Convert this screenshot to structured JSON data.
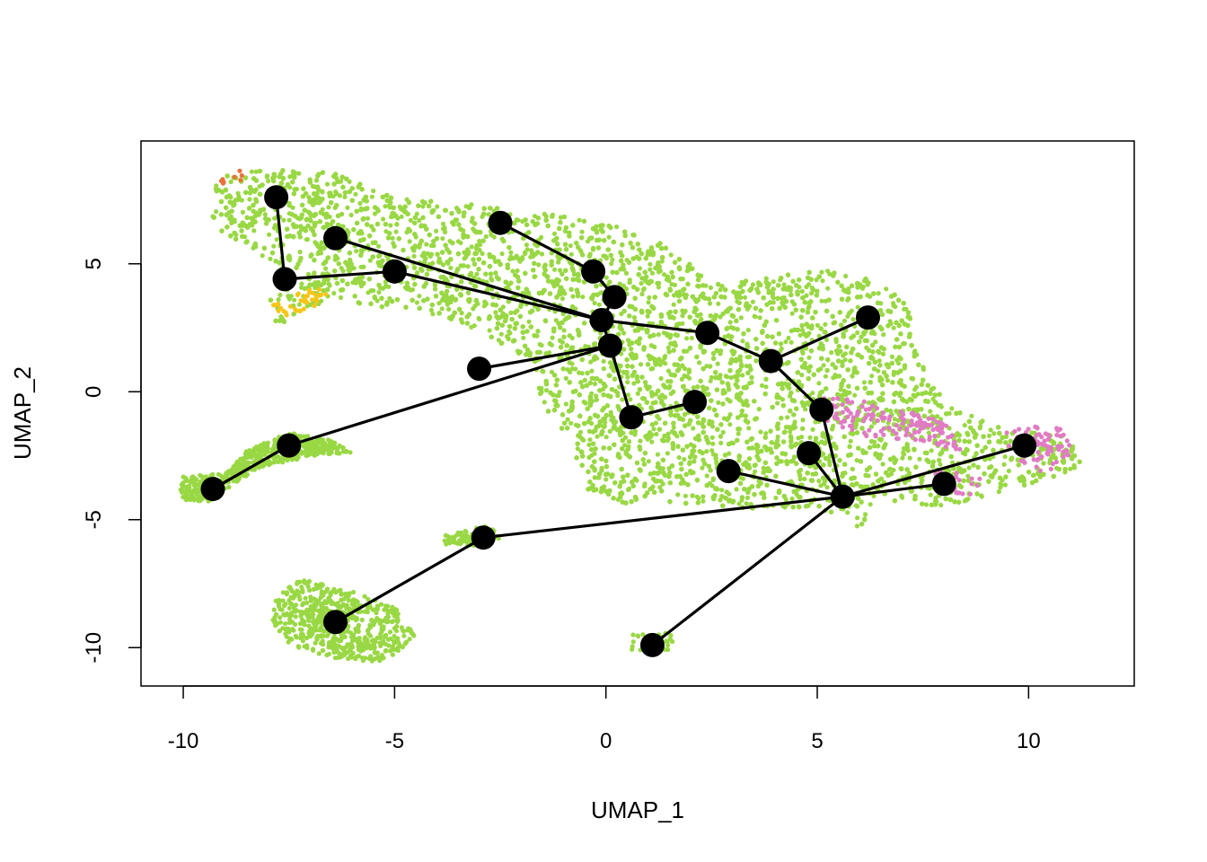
{
  "chart_data": {
    "type": "scatter",
    "title": "",
    "xlabel": "UMAP_1",
    "ylabel": "UMAP_2",
    "xlim": [
      -11,
      12.5
    ],
    "ylim": [
      -11.5,
      9.8
    ],
    "x_ticks": [
      -10,
      -5,
      0,
      5,
      10
    ],
    "x_tick_labels": [
      "-10",
      "-5",
      "0",
      "5",
      "10"
    ],
    "y_ticks": [
      -10,
      -5,
      0,
      5
    ],
    "y_tick_labels": [
      "-10",
      "-5",
      "0",
      "5"
    ],
    "grid": false,
    "legend": "none",
    "colors": {
      "cells_main": "#99d844",
      "cells_pink": "#e07bc4",
      "cells_yellow": "#f5c518",
      "cells_orange": "#e8733a",
      "cells_blue": "#5ba3c9",
      "nodes": "#000000",
      "edges": "#000000"
    },
    "cell_regions": [
      {
        "name": "top-left cluster",
        "color": "cells_main",
        "points": [
          [
            -9.4,
            8.3
          ],
          [
            -8,
            8.8
          ],
          [
            -6.5,
            8.6
          ],
          [
            -5,
            7.6
          ],
          [
            -3,
            7.3
          ],
          [
            -1.5,
            7
          ],
          [
            0,
            6.6
          ],
          [
            1.5,
            5.8
          ],
          [
            2.5,
            4.2
          ],
          [
            4,
            4.5
          ],
          [
            5,
            4.8
          ],
          [
            6,
            4.6
          ],
          [
            7,
            4
          ],
          [
            7.3,
            2.6
          ],
          [
            7.4,
            1.2
          ],
          [
            8.2,
            -0.5
          ],
          [
            9.5,
            -1.5
          ],
          [
            10.8,
            -1.6
          ],
          [
            11.5,
            -2.9
          ],
          [
            10.5,
            -3.4
          ],
          [
            9,
            -4.1
          ],
          [
            8,
            -4.5
          ],
          [
            6.5,
            -4.2
          ],
          [
            6,
            -5.3
          ],
          [
            5,
            -4.5
          ],
          [
            3.5,
            -4.6
          ],
          [
            1.5,
            -4.3
          ],
          [
            0.5,
            -4.4
          ],
          [
            -0.5,
            -3.8
          ],
          [
            -0.8,
            -2
          ],
          [
            -1.5,
            -0.5
          ],
          [
            -1.8,
            1.2
          ],
          [
            -3,
            2.4
          ],
          [
            -4.5,
            3.2
          ],
          [
            -6.5,
            3.5
          ],
          [
            -7.8,
            2.6
          ],
          [
            -8,
            3.5
          ],
          [
            -7.5,
            4.7
          ],
          [
            -8.5,
            5.6
          ],
          [
            -9.3,
            6.5
          ]
        ]
      },
      {
        "name": "left small cluster",
        "color": "cells_main",
        "points": [
          [
            -10,
            -3.3
          ],
          [
            -9,
            -3.2
          ],
          [
            -8.5,
            -2.3
          ],
          [
            -7.5,
            -1.6
          ],
          [
            -6.5,
            -1.9
          ],
          [
            -6,
            -2.4
          ],
          [
            -6.9,
            -2.5
          ],
          [
            -8.2,
            -3
          ],
          [
            -8.8,
            -3.6
          ],
          [
            -9.4,
            -4.3
          ],
          [
            -10.1,
            -4.2
          ]
        ]
      },
      {
        "name": "bottom-left cluster",
        "color": "cells_main",
        "points": [
          [
            -7.8,
            -8
          ],
          [
            -7.2,
            -7.3
          ],
          [
            -6,
            -7.8
          ],
          [
            -5,
            -8.4
          ],
          [
            -4.5,
            -9.5
          ],
          [
            -5.2,
            -10.6
          ],
          [
            -6.5,
            -10.4
          ],
          [
            -7.5,
            -9.9
          ],
          [
            -7.9,
            -9
          ]
        ]
      },
      {
        "name": "middle strip",
        "color": "cells_main",
        "points": [
          [
            -3.8,
            -5.6
          ],
          [
            -2.8,
            -5.2
          ],
          [
            -2.4,
            -5.7
          ],
          [
            -3.2,
            -6.1
          ],
          [
            -3.9,
            -6
          ]
        ]
      },
      {
        "name": "bottom small cluster",
        "color": "cells_main",
        "points": [
          [
            0.6,
            -9.5
          ],
          [
            1.6,
            -9.4
          ],
          [
            1.6,
            -10.1
          ],
          [
            0.6,
            -10.1
          ]
        ]
      },
      {
        "name": "right pink cluster",
        "color": "cells_pink",
        "points": [
          [
            9.5,
            -1.4
          ],
          [
            10.8,
            -1.3
          ],
          [
            11.2,
            -2.3
          ],
          [
            10.4,
            -3.2
          ],
          [
            9.4,
            -2.6
          ]
        ]
      },
      {
        "name": "central pink band",
        "color": "cells_pink",
        "points": [
          [
            5,
            -0.1
          ],
          [
            6.5,
            -0.4
          ],
          [
            8,
            -1.2
          ],
          [
            8.5,
            -2.3
          ],
          [
            7.5,
            -2
          ],
          [
            6,
            -1.7
          ],
          [
            5,
            -1
          ]
        ]
      },
      {
        "name": "lower-right pink",
        "color": "cells_pink",
        "points": [
          [
            7.8,
            -3
          ],
          [
            8.9,
            -3.4
          ],
          [
            8.7,
            -4.1
          ],
          [
            7.6,
            -4
          ]
        ]
      },
      {
        "name": "upper-left yellow",
        "color": "cells_yellow",
        "points": [
          [
            -7.9,
            3.4
          ],
          [
            -6.8,
            4.2
          ],
          [
            -6.5,
            3.6
          ],
          [
            -7.6,
            2.9
          ]
        ]
      },
      {
        "name": "top-left orange",
        "color": "cells_orange",
        "points": [
          [
            -9.2,
            8.4
          ],
          [
            -8.6,
            8.7
          ],
          [
            -8.5,
            8.3
          ],
          [
            -9.1,
            8.1
          ]
        ]
      }
    ],
    "nodes": [
      {
        "x": -7.8,
        "y": 7.6
      },
      {
        "x": -6.4,
        "y": 6.0
      },
      {
        "x": -2.5,
        "y": 6.6
      },
      {
        "x": -7.6,
        "y": 4.4
      },
      {
        "x": -5.0,
        "y": 4.7
      },
      {
        "x": -0.3,
        "y": 4.7
      },
      {
        "x": 0.2,
        "y": 3.7
      },
      {
        "x": -0.1,
        "y": 2.8
      },
      {
        "x": 6.2,
        "y": 2.9
      },
      {
        "x": 2.4,
        "y": 2.3
      },
      {
        "x": 0.1,
        "y": 1.8
      },
      {
        "x": 3.9,
        "y": 1.2
      },
      {
        "x": -3.0,
        "y": 0.9
      },
      {
        "x": 2.1,
        "y": -0.4
      },
      {
        "x": 0.6,
        "y": -1.0
      },
      {
        "x": 5.1,
        "y": -0.7
      },
      {
        "x": 9.9,
        "y": -2.1
      },
      {
        "x": -7.5,
        "y": -2.1
      },
      {
        "x": 4.8,
        "y": -2.4
      },
      {
        "x": 2.9,
        "y": -3.1
      },
      {
        "x": 8.0,
        "y": -3.6
      },
      {
        "x": -9.3,
        "y": -3.8
      },
      {
        "x": 5.6,
        "y": -4.1
      },
      {
        "x": -2.9,
        "y": -5.7
      },
      {
        "x": -6.4,
        "y": -9.0
      },
      {
        "x": 1.1,
        "y": -9.9
      }
    ],
    "edges": [
      [
        0,
        3
      ],
      [
        3,
        4
      ],
      [
        4,
        7
      ],
      [
        1,
        7
      ],
      [
        2,
        5
      ],
      [
        5,
        6
      ],
      [
        6,
        7
      ],
      [
        7,
        9
      ],
      [
        9,
        11
      ],
      [
        11,
        8
      ],
      [
        11,
        15
      ],
      [
        7,
        10
      ],
      [
        10,
        12
      ],
      [
        10,
        14
      ],
      [
        14,
        13
      ],
      [
        10,
        17
      ],
      [
        17,
        21
      ],
      [
        15,
        22
      ],
      [
        18,
        22
      ],
      [
        19,
        22
      ],
      [
        22,
        20
      ],
      [
        22,
        16
      ],
      [
        22,
        23
      ],
      [
        23,
        24
      ],
      [
        22,
        25
      ]
    ]
  }
}
